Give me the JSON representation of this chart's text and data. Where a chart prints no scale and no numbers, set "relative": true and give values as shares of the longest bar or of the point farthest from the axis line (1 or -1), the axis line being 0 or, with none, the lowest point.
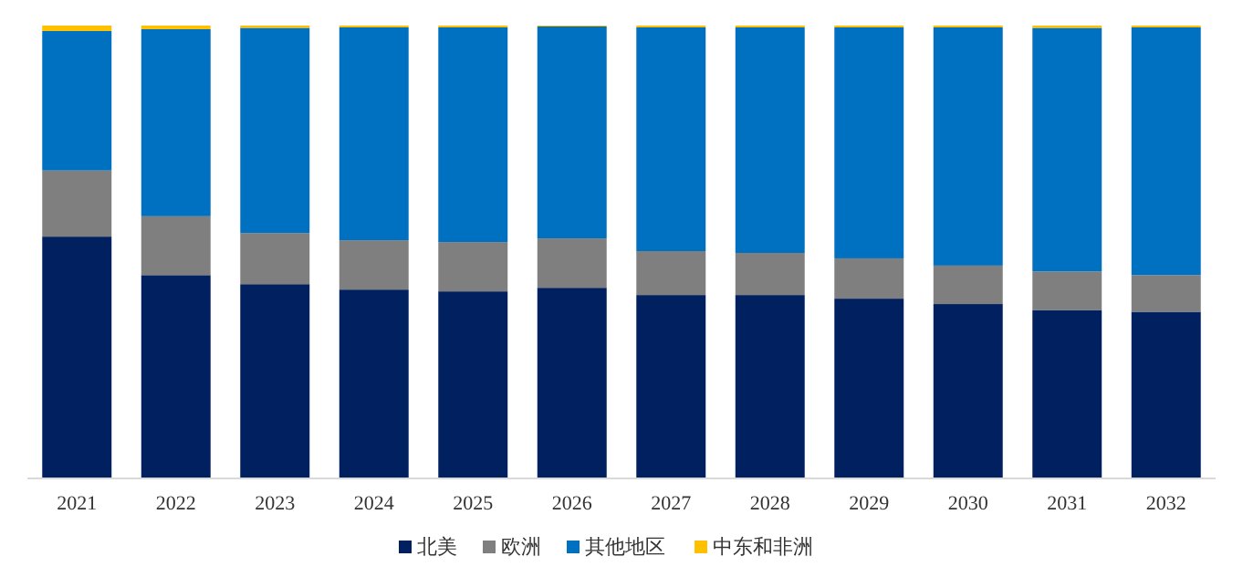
{
  "chart_data": {
    "type": "bar",
    "stacked": true,
    "relative": true,
    "legend": "bottom",
    "categories": [
      "2021",
      "2022",
      "2023",
      "2024",
      "2025",
      "2026",
      "2027",
      "2028",
      "2029",
      "2030",
      "2031",
      "2032"
    ],
    "series": [
      {
        "name": "北美",
        "color": "#002060",
        "values": [
          0.534,
          0.449,
          0.429,
          0.417,
          0.413,
          0.421,
          0.405,
          0.405,
          0.397,
          0.385,
          0.372,
          0.368
        ]
      },
      {
        "name": "欧洲",
        "color": "#7f7f7f",
        "values": [
          0.146,
          0.13,
          0.113,
          0.109,
          0.109,
          0.109,
          0.097,
          0.093,
          0.089,
          0.085,
          0.085,
          0.081
        ]
      },
      {
        "name": "其他地区",
        "color": "#0070c0",
        "values": [
          0.308,
          0.413,
          0.453,
          0.47,
          0.474,
          0.468,
          0.494,
          0.498,
          0.51,
          0.526,
          0.538,
          0.547
        ]
      },
      {
        "name": "中东和非洲",
        "color": "#ffc000",
        "values": [
          0.012,
          0.008,
          0.005,
          0.004,
          0.004,
          0.002,
          0.004,
          0.004,
          0.004,
          0.004,
          0.005,
          0.004
        ]
      }
    ]
  }
}
